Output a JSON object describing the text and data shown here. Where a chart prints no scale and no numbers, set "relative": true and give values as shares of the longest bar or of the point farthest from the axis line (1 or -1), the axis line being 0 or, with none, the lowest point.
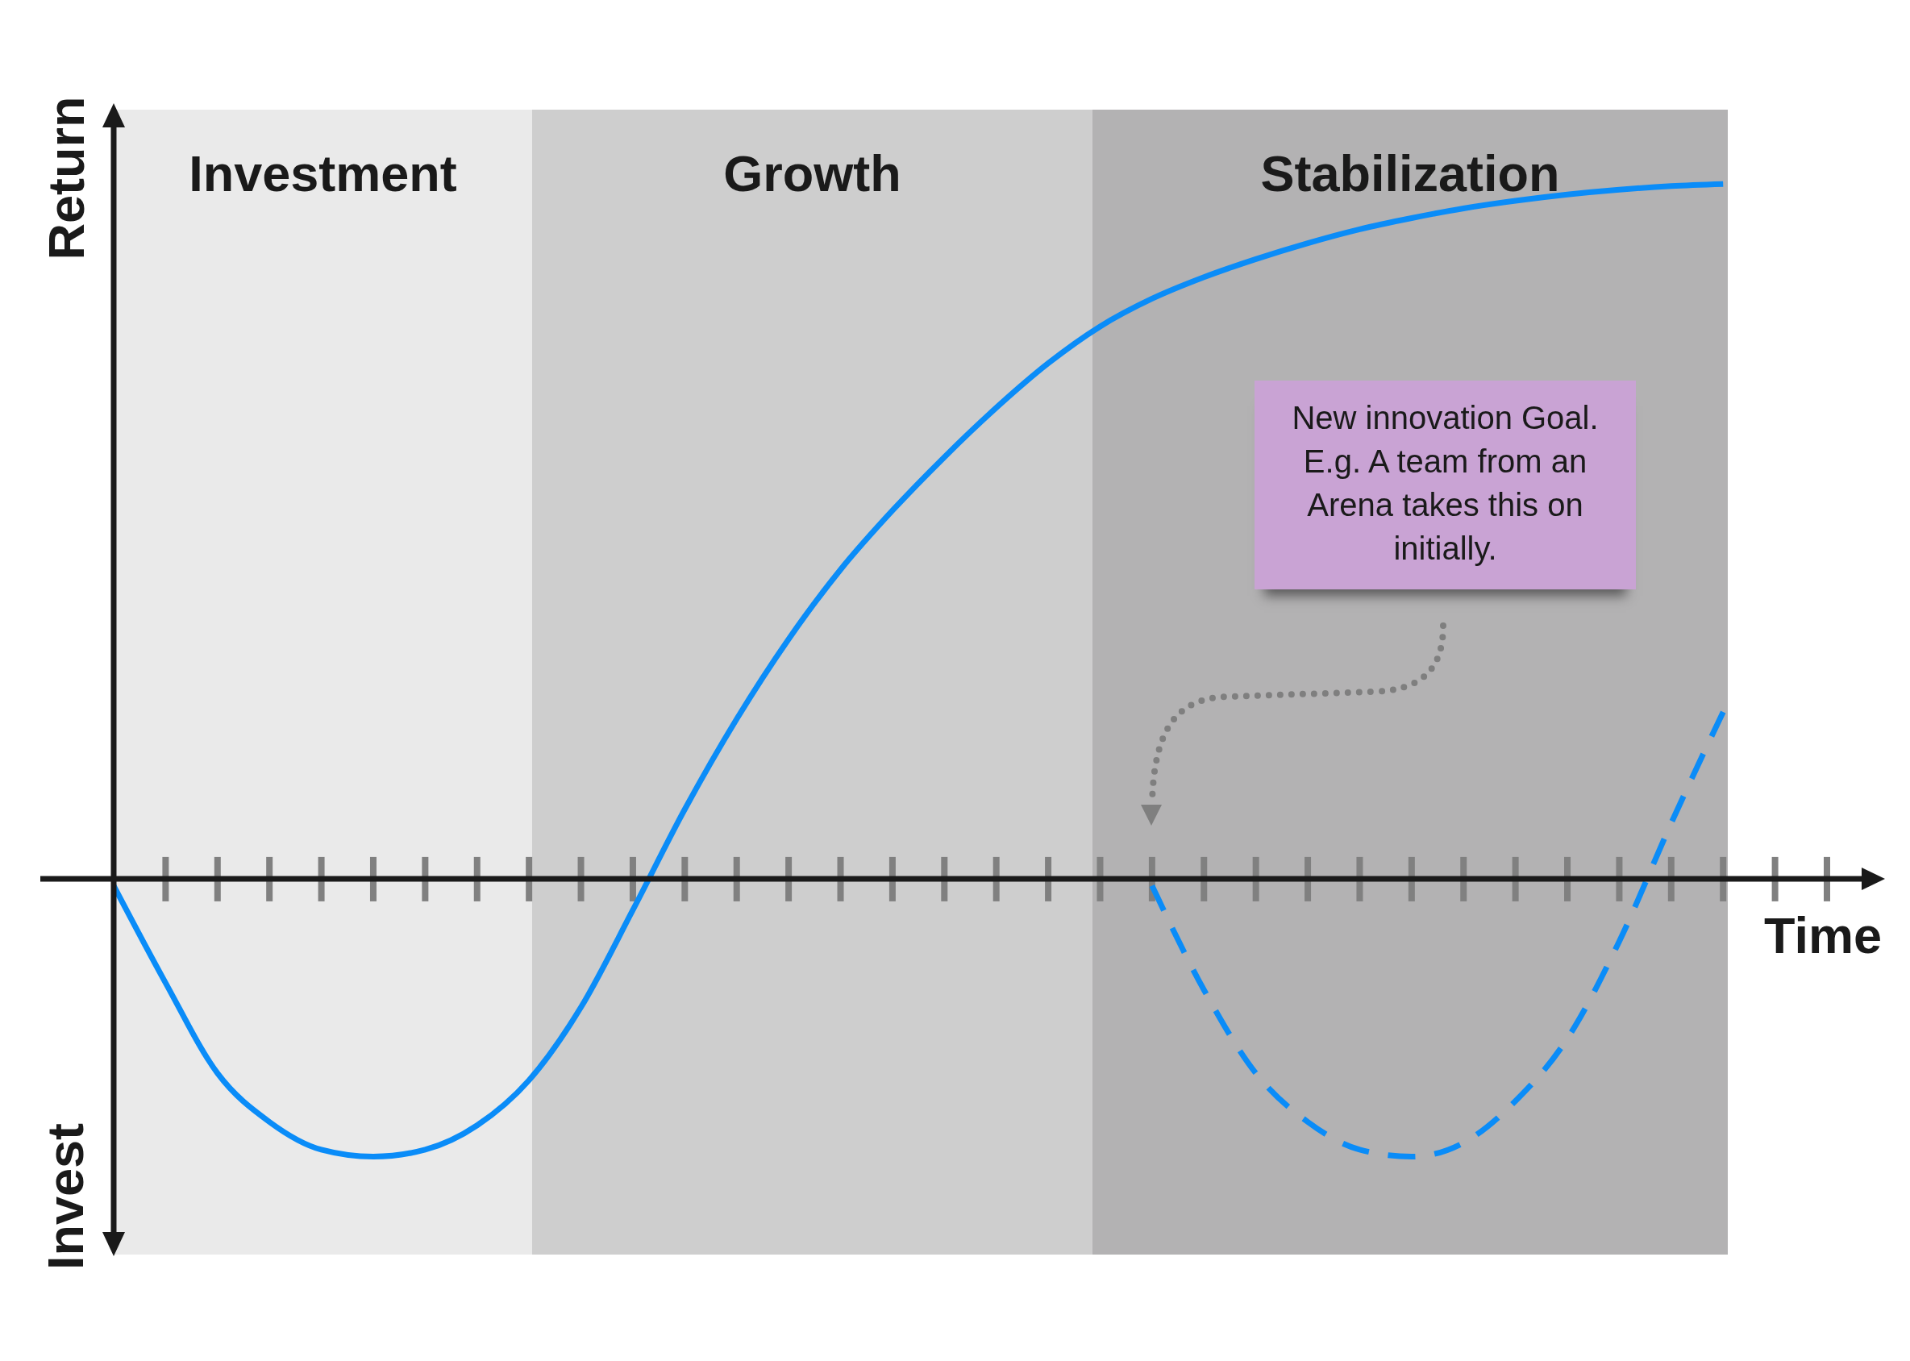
{
  "chart_data": {
    "type": "line",
    "relative": true,
    "xlabel": "Time",
    "ylabel": "Return",
    "marker": "none",
    "categories": [
      null,
      null,
      null,
      null,
      null,
      null,
      null,
      null,
      null,
      null,
      null,
      null,
      null,
      null,
      null,
      null,
      null,
      null,
      null,
      null,
      null,
      null,
      null,
      null,
      null,
      null,
      null,
      null,
      null,
      null,
      null,
      null,
      null,
      null
    ],
    "series": [
      {
        "color": "#0a8cf8",
        "line_style": "solid",
        "values": [
          -0.01,
          -0.15,
          -0.28,
          -0.35,
          -0.39,
          -0.4,
          -0.39,
          -0.355,
          -0.29,
          -0.185,
          -0.045,
          0.1,
          0.23,
          0.345,
          0.445,
          0.53,
          0.607,
          0.678,
          0.742,
          0.795,
          0.835,
          0.866,
          0.892,
          0.915,
          0.935,
          0.951,
          0.965,
          0.976,
          0.985,
          0.992,
          0.997,
          1,
          null,
          null
        ]
      },
      {
        "color": "#0a8cf8",
        "line_style": "dashed",
        "values": [
          null,
          null,
          null,
          null,
          null,
          null,
          null,
          null,
          null,
          null,
          null,
          null,
          null,
          null,
          null,
          null,
          null,
          null,
          null,
          null,
          -0.01,
          -0.16,
          -0.28,
          -0.35,
          -0.39,
          -0.4,
          -0.38,
          -0.32,
          -0.23,
          -0.09,
          0.08,
          0.24,
          null,
          null
        ]
      }
    ],
    "annotations": [
      "Investment",
      "Growth",
      "Stabilization",
      "Invest",
      "New innovation Goal. E.g. A team from an Arena takes this on initially."
    ]
  }
}
